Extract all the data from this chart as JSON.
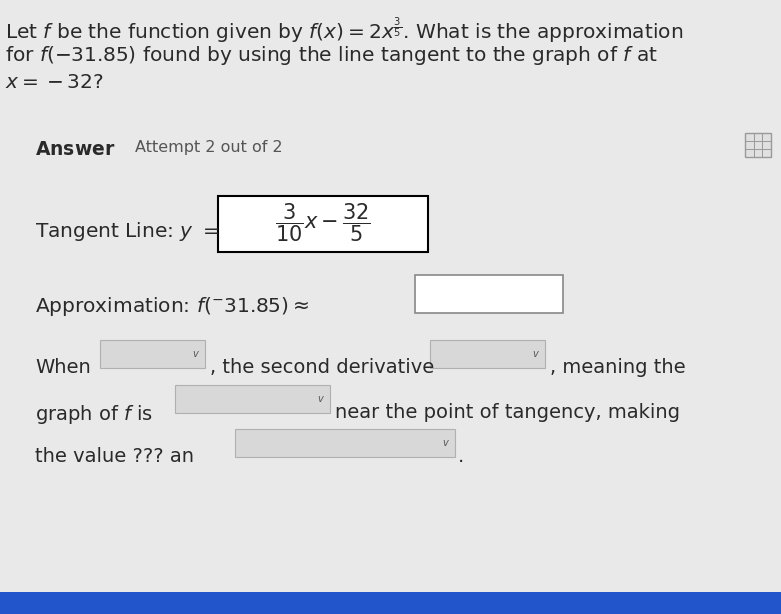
{
  "title_line1": "Let $f$ be the function given by $f(x) = 2x^{\\frac{3}{5}}$. What is the approximation",
  "title_line2": "for $f(-31.85)$ found by using the line tangent to the graph of $f$ at",
  "title_line3": "$x = -32$?",
  "answer_label": "Answer",
  "attempt_label": "Attempt 2 out of 2",
  "tangent_label": "Tangent Line: $y =$",
  "tangent_formula": "$\\dfrac{3}{10}x - \\dfrac{32}{5}$",
  "approx_label": "Approximation: $f(^{-}31.85) \\approx$",
  "when_label": "When",
  "second_deriv_text": ", the second derivative",
  "meaning_text": ", meaning the",
  "graph_label": "graph of $f$ is",
  "near_tangency": "near the point of tangency, making",
  "value_text": "the value ??? an",
  "bg_color": "#e9e9e9",
  "text_color": "#2a2a2a",
  "box_color": "#ffffff",
  "box_border": "#000000",
  "dd_color": "#d8d8d8",
  "dd_border": "#b0b0b0",
  "blue_bar": "#2255cc",
  "grid_color": "#aaaaaa"
}
